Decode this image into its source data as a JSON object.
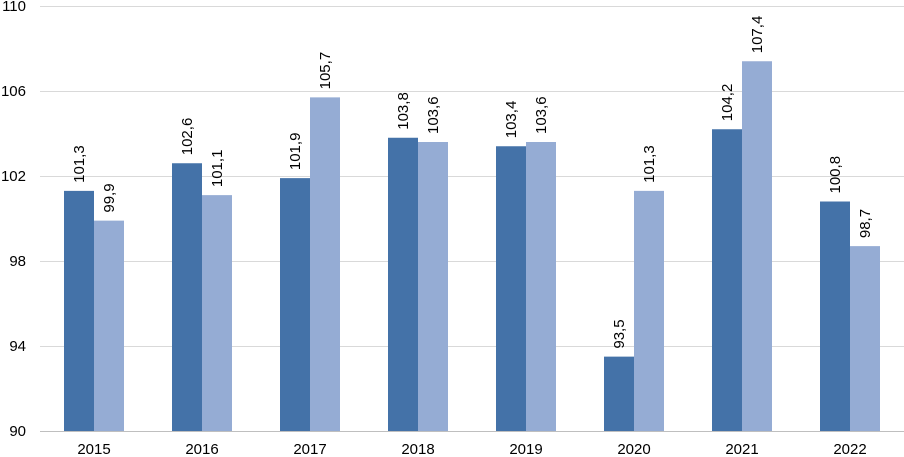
{
  "chart_data": {
    "type": "bar",
    "categories": [
      "2015",
      "2016",
      "2017",
      "2018",
      "2019",
      "2020",
      "2021",
      "2022"
    ],
    "series": [
      {
        "color": "#4472a8",
        "values": [
          101.3,
          102.6,
          101.9,
          103.8,
          103.4,
          93.5,
          104.2,
          100.8
        ],
        "labels": [
          "101,3",
          "102,6",
          "101,9",
          "103,8",
          "103,4",
          "93,5",
          "104,2",
          "100,8"
        ]
      },
      {
        "color": "#95acd4",
        "values": [
          99.9,
          101.1,
          105.7,
          103.6,
          103.6,
          101.3,
          107.4,
          98.7
        ],
        "labels": [
          "99,9",
          "101,1",
          "105,7",
          "103,6",
          "103,6",
          "101,3",
          "107,4",
          "98,7"
        ]
      }
    ],
    "ylim": [
      90,
      110
    ],
    "yticks": [
      90,
      94,
      98,
      102,
      106,
      110
    ],
    "ytick_labels": [
      "90",
      "94",
      "98",
      "102",
      "106",
      "110"
    ],
    "grid": true,
    "legend": "none",
    "data_labels": "rotated vertical"
  }
}
